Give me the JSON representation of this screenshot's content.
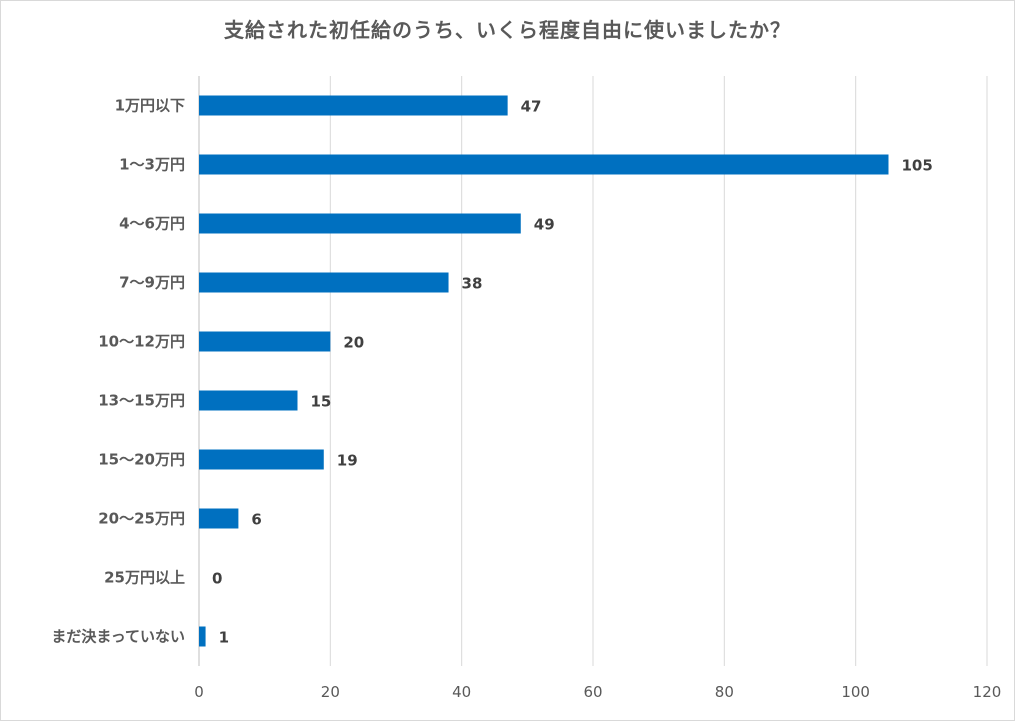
{
  "chart_data": {
    "type": "bar",
    "orientation": "horizontal",
    "title": "支給された初任給のうち、いくら程度自由に使いましたか？",
    "categories": [
      "1万円以下",
      "1～3万円",
      "4～6万円",
      "7～9万円",
      "10～12万円",
      "13～15万円",
      "15～20万円",
      "20～25万円",
      "25万円以上",
      "まだ決まっていない"
    ],
    "values": [
      47,
      105,
      49,
      38,
      20,
      15,
      19,
      6,
      0,
      1
    ],
    "xlim": [
      0,
      120
    ],
    "xticks": [
      0,
      20,
      40,
      60,
      80,
      100,
      120
    ],
    "xlabel": "",
    "ylabel": "",
    "grid": "vertical",
    "legend": "none",
    "bar_color": "#0070C0"
  }
}
